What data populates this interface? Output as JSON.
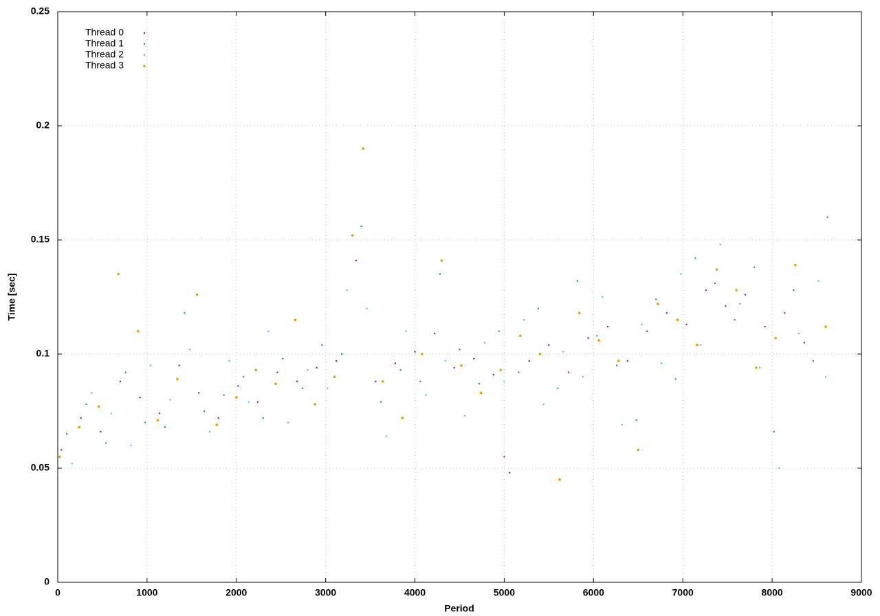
{
  "chart_data": {
    "type": "scatter",
    "xlabel": "Period",
    "ylabel": "Time [sec]",
    "xlim": [
      0,
      9000
    ],
    "ylim": [
      0,
      0.25
    ],
    "xticks": [
      0,
      1000,
      2000,
      3000,
      4000,
      5000,
      6000,
      7000,
      8000,
      9000
    ],
    "yticks": [
      0,
      0.05,
      0.1,
      0.15,
      0.2,
      0.25
    ],
    "grid": true,
    "legend": "top left",
    "series": [
      {
        "name": "Thread 0",
        "color": "#9400d3",
        "x": [
          40,
          260,
          480,
          700,
          920,
          1140,
          1360,
          1580,
          1800,
          2020,
          2240,
          2460,
          2680,
          2900,
          3120,
          3340,
          3560,
          3780,
          4000,
          4220,
          4440,
          4660,
          4880,
          5000,
          5060,
          5280,
          5500,
          5720,
          5940,
          6160,
          6380,
          6600,
          6820,
          7040,
          7260,
          7480,
          7700,
          7920,
          8140,
          8360
        ],
        "values": [
          0.058,
          0.072,
          0.066,
          0.088,
          0.081,
          0.074,
          0.095,
          0.083,
          0.072,
          0.086,
          0.079,
          0.092,
          0.088,
          0.094,
          0.097,
          0.141,
          0.088,
          0.096,
          0.101,
          0.109,
          0.094,
          0.098,
          0.091,
          0.055,
          0.048,
          0.097,
          0.104,
          0.092,
          0.107,
          0.112,
          0.097,
          0.11,
          0.118,
          0.113,
          0.128,
          0.121,
          0.126,
          0.112,
          0.118,
          0.105
        ]
      },
      {
        "name": "Thread 1",
        "color": "#009e73",
        "x": [
          100,
          320,
          540,
          760,
          980,
          1200,
          1420,
          1640,
          1860,
          2080,
          2300,
          2520,
          2740,
          2960,
          3180,
          3400,
          3620,
          3840,
          4060,
          4280,
          4500,
          4720,
          4940,
          5160,
          5380,
          5600,
          5820,
          6040,
          6260,
          6480,
          6700,
          6920,
          7140,
          7360,
          7580,
          7800,
          8020,
          8240,
          8460,
          8620
        ],
        "values": [
          0.065,
          0.078,
          0.061,
          0.092,
          0.07,
          0.068,
          0.118,
          0.075,
          0.082,
          0.09,
          0.072,
          0.098,
          0.085,
          0.104,
          0.1,
          0.156,
          0.079,
          0.093,
          0.088,
          0.135,
          0.102,
          0.087,
          0.11,
          0.092,
          0.12,
          0.085,
          0.132,
          0.108,
          0.095,
          0.071,
          0.124,
          0.089,
          0.142,
          0.131,
          0.115,
          0.138,
          0.066,
          0.128,
          0.097,
          0.16
        ]
      },
      {
        "name": "Thread 2",
        "color": "#56b4e9",
        "x": [
          160,
          380,
          600,
          820,
          1040,
          1260,
          1480,
          1700,
          1920,
          2140,
          2360,
          2580,
          2800,
          3020,
          3240,
          3460,
          3680,
          3900,
          4120,
          4340,
          4560,
          4780,
          5000,
          5220,
          5440,
          5660,
          5880,
          6100,
          6320,
          6540,
          6760,
          6980,
          7200,
          7420,
          7640,
          7860,
          8080,
          8300,
          8520,
          8600
        ],
        "values": [
          0.052,
          0.083,
          0.074,
          0.06,
          0.095,
          0.08,
          0.102,
          0.066,
          0.097,
          0.079,
          0.11,
          0.07,
          0.093,
          0.085,
          0.128,
          0.12,
          0.064,
          0.11,
          0.082,
          0.097,
          0.073,
          0.105,
          0.088,
          0.115,
          0.078,
          0.101,
          0.09,
          0.125,
          0.069,
          0.113,
          0.096,
          0.135,
          0.104,
          0.148,
          0.122,
          0.094,
          0.05,
          0.109,
          0.132,
          0.09
        ]
      },
      {
        "name": "Thread 3",
        "color": "#e69f00",
        "x": [
          20,
          240,
          460,
          680,
          900,
          1120,
          1340,
          1560,
          1780,
          2000,
          2220,
          2440,
          2660,
          2880,
          3100,
          3300,
          3420,
          3640,
          3860,
          4080,
          4300,
          4520,
          4740,
          4960,
          5180,
          5400,
          5620,
          5840,
          6060,
          6280,
          6500,
          6720,
          6940,
          7160,
          7380,
          7600,
          7820,
          8040,
          8260,
          8600
        ],
        "values": [
          0.055,
          0.068,
          0.077,
          0.135,
          0.11,
          0.071,
          0.089,
          0.126,
          0.069,
          0.081,
          0.093,
          0.087,
          0.115,
          0.078,
          0.09,
          0.152,
          0.19,
          0.088,
          0.072,
          0.1,
          0.141,
          0.095,
          0.083,
          0.093,
          0.108,
          0.1,
          0.045,
          0.118,
          0.106,
          0.097,
          0.058,
          0.122,
          0.115,
          0.104,
          0.137,
          0.128,
          0.094,
          0.107,
          0.139,
          0.112
        ]
      }
    ]
  }
}
